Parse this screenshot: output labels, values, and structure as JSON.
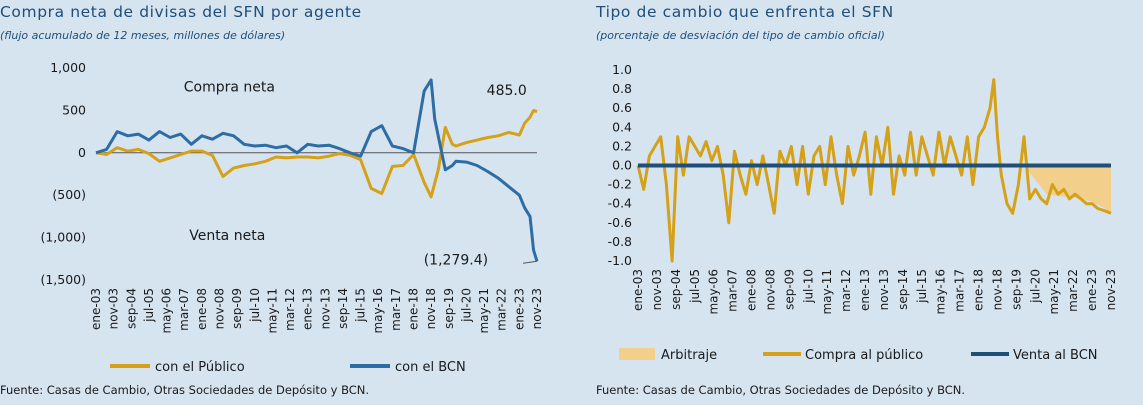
{
  "left": {
    "title": "Compra neta de divisas del SFN por agente",
    "subtitle": "(flujo acumulado de 12 meses, millones de dólares)",
    "source": "Fuente: Casas de Cambio, Otras Sociedades de Depósito y BCN."
  },
  "right": {
    "title": "Tipo de cambio que enfrenta el SFN",
    "subtitle": "(porcentaje de desviación del tipo de cambio oficial)",
    "source": "Fuente: Casas de Cambio, Otras Sociedades de Depósito y BCN."
  },
  "chart_data": [
    {
      "type": "line",
      "title": "Compra neta de divisas del SFN por agente",
      "subtitle": "(flujo acumulado de 12 meses, millones de dólares)",
      "ylim": [
        -1500,
        1000
      ],
      "y_ticks": [
        1000,
        500,
        0,
        -500,
        -1000,
        -1500
      ],
      "y_tick_labels": [
        "1,000",
        "500",
        "0",
        "(500)",
        "(1,000)",
        "(1,500)"
      ],
      "x_tick_labels": [
        "ene-03",
        "nov-03",
        "sep-04",
        "jul-05",
        "may-06",
        "mar-07",
        "ene-08",
        "nov-08",
        "sep-09",
        "jul-10",
        "may-11",
        "mar-12",
        "ene-13",
        "nov-13",
        "sep-14",
        "jul-15",
        "may-16",
        "mar-17",
        "ene-18",
        "nov-18",
        "sep-19",
        "jul-20",
        "may-21",
        "mar-22",
        "ene-23",
        "nov-23"
      ],
      "x_range": [
        2003.0,
        2023.83
      ],
      "legend": "bottom",
      "annotations": [
        {
          "text": "Compra neta",
          "x": 2009.3,
          "y": 720
        },
        {
          "text": "Venta neta",
          "x": 2009.2,
          "y": -1030
        },
        {
          "text": "485.0",
          "x": 2022.4,
          "y": 680
        },
        {
          "text": "(1,279.4)",
          "x": 2020.0,
          "y": -1320
        }
      ],
      "series": [
        {
          "name": "con el Público",
          "color": "#d4a118",
          "x": [
            2003.0,
            2003.5,
            2004.0,
            2004.5,
            2005.0,
            2005.5,
            2006.0,
            2006.5,
            2007.0,
            2007.5,
            2008.0,
            2008.5,
            2009.0,
            2009.5,
            2010.0,
            2010.5,
            2011.0,
            2011.5,
            2012.0,
            2012.5,
            2013.0,
            2013.5,
            2014.0,
            2014.5,
            2015.0,
            2015.5,
            2016.0,
            2016.5,
            2017.0,
            2017.5,
            2018.0,
            2018.5,
            2018.83,
            2019.17,
            2019.5,
            2019.83,
            2020.0,
            2020.5,
            2021.0,
            2021.5,
            2022.0,
            2022.5,
            2023.0,
            2023.25,
            2023.5,
            2023.67,
            2023.83
          ],
          "y": [
            0,
            -20,
            60,
            20,
            40,
            -10,
            -100,
            -60,
            -20,
            20,
            20,
            -30,
            -280,
            -180,
            -150,
            -130,
            -100,
            -50,
            -60,
            -50,
            -50,
            -60,
            -40,
            -10,
            -30,
            -80,
            -420,
            -480,
            -160,
            -150,
            -20,
            -350,
            -520,
            -200,
            300,
            100,
            80,
            120,
            150,
            180,
            200,
            240,
            210,
            350,
            420,
            500,
            485
          ]
        },
        {
          "name": "con el BCN",
          "color": "#2e6da4",
          "x": [
            2003.0,
            2003.5,
            2004.0,
            2004.5,
            2005.0,
            2005.5,
            2006.0,
            2006.5,
            2007.0,
            2007.5,
            2008.0,
            2008.5,
            2009.0,
            2009.5,
            2010.0,
            2010.5,
            2011.0,
            2011.5,
            2012.0,
            2012.5,
            2013.0,
            2013.5,
            2014.0,
            2014.5,
            2015.0,
            2015.5,
            2016.0,
            2016.5,
            2017.0,
            2017.5,
            2018.0,
            2018.5,
            2018.83,
            2019.0,
            2019.5,
            2019.83,
            2020.0,
            2020.5,
            2021.0,
            2021.5,
            2022.0,
            2022.5,
            2023.0,
            2023.25,
            2023.5,
            2023.67,
            2023.83
          ],
          "y": [
            0,
            40,
            250,
            200,
            220,
            150,
            250,
            180,
            220,
            100,
            200,
            160,
            230,
            200,
            100,
            80,
            90,
            60,
            80,
            0,
            100,
            80,
            90,
            50,
            0,
            -40,
            250,
            320,
            80,
            50,
            0,
            730,
            860,
            400,
            -200,
            -150,
            -100,
            -110,
            -150,
            -220,
            -300,
            -400,
            -500,
            -650,
            -750,
            -1150,
            -1279.4
          ]
        }
      ]
    },
    {
      "type": "line",
      "title": "Tipo de cambio que enfrenta el SFN",
      "subtitle": "(porcentaje de desviación del tipo de cambio oficial)",
      "ylim": [
        -1.0,
        1.0
      ],
      "y_ticks": [
        1.0,
        0.8,
        0.6,
        0.4,
        0.2,
        0.0,
        -0.2,
        -0.4,
        -0.6,
        -0.8,
        -1.0
      ],
      "y_tick_labels": [
        "1.0",
        "0.8",
        "0.6",
        "0.4",
        "0.2",
        "0.0",
        "-0.2",
        "-0.4",
        "-0.6",
        "-0.8",
        "-1.0"
      ],
      "x_tick_labels": [
        "ene-03",
        "nov-03",
        "sep-04",
        "jul-05",
        "may-06",
        "mar-07",
        "ene-08",
        "nov-08",
        "sep-09",
        "jul-10",
        "may-11",
        "mar-12",
        "ene-13",
        "nov-13",
        "sep-14",
        "jul-15",
        "may-16",
        "mar-17",
        "ene-18",
        "nov-18",
        "sep-19",
        "jul-20",
        "may-21",
        "mar-22",
        "ene-23",
        "nov-23"
      ],
      "x_range": [
        2003.0,
        2023.83
      ],
      "legend": "bottom",
      "series": [
        {
          "name": "Arbitraje",
          "type": "area",
          "color": "#f2cf8a",
          "x": [
            2003.0,
            2004.0,
            2005.0,
            2006.0,
            2007.0,
            2008.0,
            2009.0,
            2010.0,
            2011.0,
            2012.0,
            2013.0,
            2014.0,
            2015.0,
            2016.0,
            2017.0,
            2018.0,
            2018.5,
            2018.83,
            2019.0,
            2019.5,
            2019.83,
            2020.0,
            2020.5,
            2021.0,
            2021.5,
            2022.0,
            2022.5,
            2023.0,
            2023.5,
            2023.83
          ],
          "y": [
            0,
            0,
            0,
            0,
            0,
            0,
            0,
            0,
            0,
            0,
            0,
            0,
            0,
            0,
            0,
            0,
            0,
            0,
            0,
            0,
            0,
            0,
            -0.15,
            -0.3,
            -0.32,
            -0.33,
            -0.35,
            -0.38,
            -0.44,
            -0.5
          ]
        },
        {
          "name": "Compra al público",
          "color": "#d4a118",
          "x": [
            2003.0,
            2003.25,
            2003.5,
            2003.75,
            2004.0,
            2004.25,
            2004.5,
            2004.75,
            2005.0,
            2005.25,
            2005.5,
            2005.75,
            2006.0,
            2006.25,
            2006.5,
            2006.75,
            2007.0,
            2007.25,
            2007.5,
            2007.75,
            2008.0,
            2008.25,
            2008.5,
            2008.75,
            2009.0,
            2009.25,
            2009.5,
            2009.75,
            2010.0,
            2010.25,
            2010.5,
            2010.75,
            2011.0,
            2011.25,
            2011.5,
            2011.75,
            2012.0,
            2012.25,
            2012.5,
            2012.75,
            2013.0,
            2013.25,
            2013.5,
            2013.75,
            2014.0,
            2014.25,
            2014.5,
            2014.75,
            2015.0,
            2015.25,
            2015.5,
            2015.75,
            2016.0,
            2016.25,
            2016.5,
            2016.75,
            2017.0,
            2017.25,
            2017.5,
            2017.75,
            2018.0,
            2018.25,
            2018.5,
            2018.67,
            2018.83,
            2019.0,
            2019.25,
            2019.5,
            2019.75,
            2020.0,
            2020.25,
            2020.5,
            2020.75,
            2021.0,
            2021.25,
            2021.5,
            2021.75,
            2022.0,
            2022.25,
            2022.5,
            2022.75,
            2023.0,
            2023.25,
            2023.5,
            2023.83
          ],
          "y": [
            0.0,
            -0.25,
            0.1,
            0.2,
            0.3,
            -0.2,
            -1.0,
            0.3,
            -0.1,
            0.3,
            0.2,
            0.1,
            0.25,
            0.05,
            0.2,
            -0.1,
            -0.6,
            0.15,
            -0.1,
            -0.3,
            0.05,
            -0.2,
            0.1,
            -0.2,
            -0.5,
            0.15,
            0.0,
            0.2,
            -0.2,
            0.2,
            -0.3,
            0.1,
            0.2,
            -0.2,
            0.3,
            -0.1,
            -0.4,
            0.2,
            -0.1,
            0.1,
            0.35,
            -0.3,
            0.3,
            0.0,
            0.4,
            -0.3,
            0.1,
            -0.1,
            0.35,
            -0.1,
            0.3,
            0.1,
            -0.1,
            0.35,
            0.0,
            0.3,
            0.1,
            -0.1,
            0.3,
            -0.2,
            0.3,
            0.4,
            0.6,
            0.9,
            0.3,
            -0.1,
            -0.4,
            -0.5,
            -0.2,
            0.3,
            -0.35,
            -0.25,
            -0.35,
            -0.4,
            -0.2,
            -0.3,
            -0.25,
            -0.35,
            -0.3,
            -0.35,
            -0.4,
            -0.4,
            -0.45,
            -0.47,
            -0.5
          ]
        },
        {
          "name": "Venta al BCN",
          "color": "#1f4e79",
          "x": [
            2003.0,
            2023.83
          ],
          "y": [
            0.0,
            0.0
          ]
        }
      ]
    }
  ]
}
